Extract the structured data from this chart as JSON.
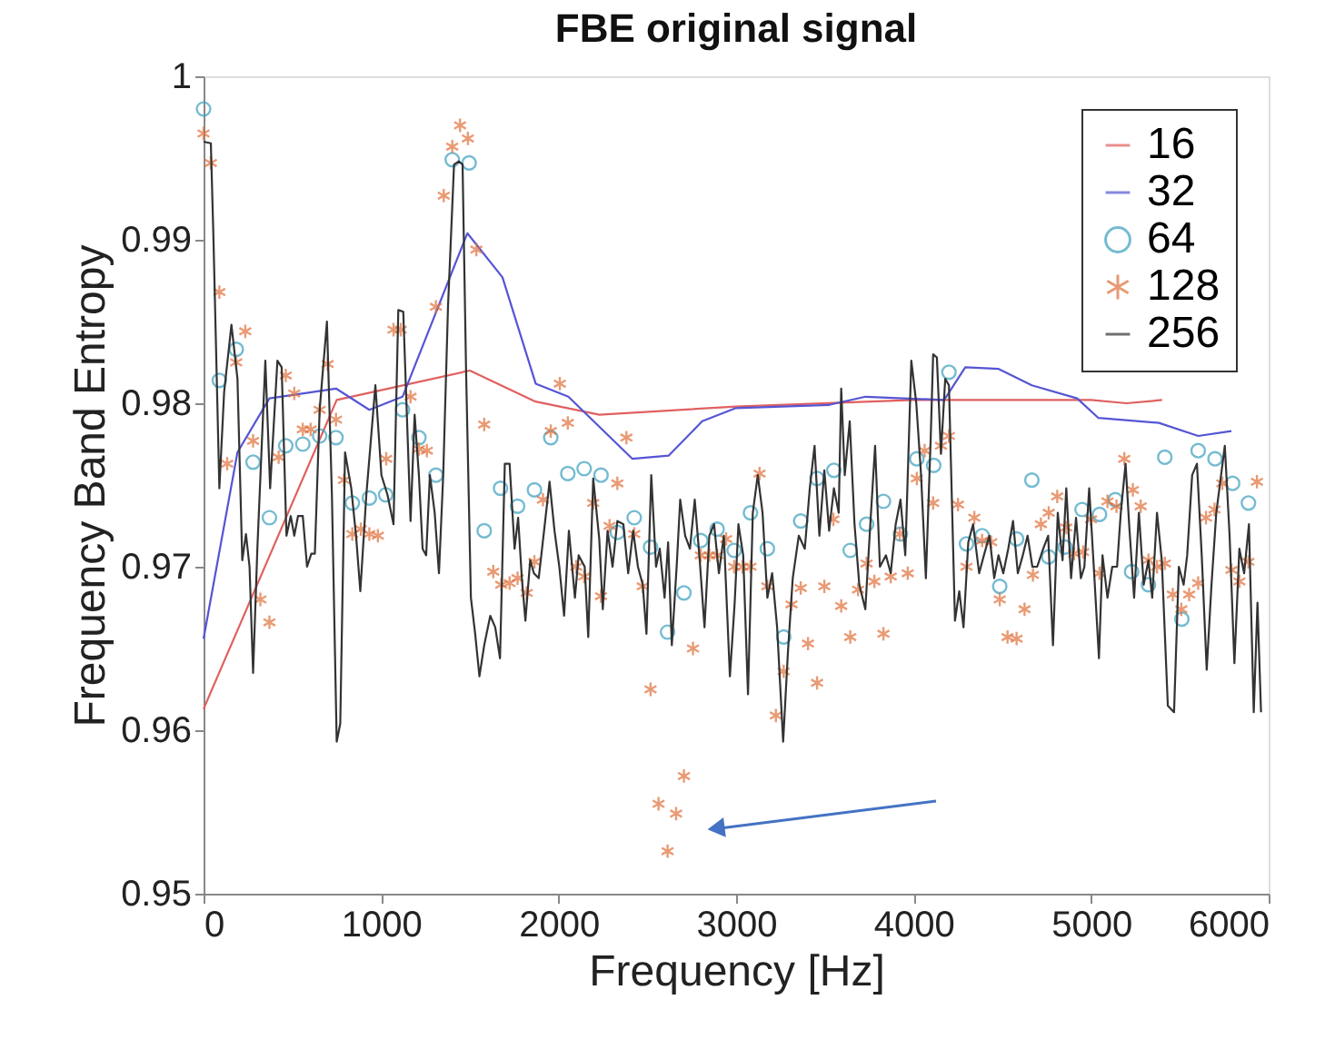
{
  "chart_data": {
    "type": "line",
    "title": "FBE original signal",
    "xlabel": "Frequency [Hz]",
    "ylabel": "Frequency Band Entropy",
    "xlim": [
      0,
      6000
    ],
    "xticks": [
      0,
      1000,
      2000,
      3000,
      4000,
      5000,
      6000
    ],
    "ylim": [
      0.95,
      1
    ],
    "yticks": [
      0.95,
      0.96,
      0.97,
      0.98,
      0.99,
      1
    ],
    "grid": false,
    "legend": "top right",
    "line_style": "solid",
    "series": [
      {
        "name": "16",
        "type": "line",
        "marker": "none",
        "color": "#e06060",
        "x": [
          0,
          750,
          1500,
          1870,
          2230,
          3000,
          4000,
          5000,
          5200,
          5400
        ],
        "values": [
          0.9613,
          0.9802,
          0.982,
          0.9801,
          0.9793,
          0.9798,
          0.9802,
          0.9802,
          0.98,
          0.9802
        ]
      },
      {
        "name": "32",
        "type": "line",
        "marker": "none",
        "color": "#5555d5",
        "x": [
          0,
          191,
          371,
          746,
          934,
          1121,
          1486,
          1684,
          1871,
          2055,
          2416,
          2621,
          2809,
          2996,
          3524,
          3729,
          4172,
          4291,
          4479,
          4666,
          4921,
          5041,
          5382,
          5603,
          5790
        ],
        "values": [
          0.9656,
          0.977,
          0.9803,
          0.9809,
          0.9796,
          0.9804,
          0.9904,
          0.9877,
          0.9812,
          0.9804,
          0.9766,
          0.9768,
          0.9789,
          0.9797,
          0.9799,
          0.9804,
          0.9802,
          0.9822,
          0.9821,
          0.9811,
          0.9803,
          0.9791,
          0.9788,
          0.978,
          0.9783
        ]
      },
      {
        "name": "64",
        "type": "scatter",
        "marker": "circle",
        "color": "#3a9fbf",
        "x": [
          0,
          89,
          184,
          279,
          371,
          463,
          559,
          654,
          746,
          838,
          934,
          1026,
          1121,
          1213,
          1309,
          1401,
          1496,
          1581,
          1673,
          1769,
          1864,
          1956,
          2052,
          2144,
          2239,
          2331,
          2426,
          2518,
          2614,
          2706,
          2801,
          2893,
          2989,
          3081,
          3176,
          3268,
          3364,
          3456,
          3551,
          3643,
          3735,
          3830,
          3926,
          4018,
          4113,
          4199,
          4298,
          4386,
          4485,
          4580,
          4666,
          4761,
          4853,
          4949,
          5047,
          5136,
          5228,
          5323,
          5415,
          5511,
          5603,
          5698,
          5797,
          5886
        ],
        "values": [
          0.998,
          0.9814,
          0.9833,
          0.9764,
          0.973,
          0.9774,
          0.9775,
          0.978,
          0.9779,
          0.9739,
          0.9742,
          0.9744,
          0.9796,
          0.9779,
          0.9756,
          0.9949,
          0.9947,
          0.9722,
          0.9748,
          0.9737,
          0.9747,
          0.9779,
          0.9757,
          0.976,
          0.9756,
          0.9721,
          0.973,
          0.9712,
          0.966,
          0.9684,
          0.9716,
          0.9723,
          0.971,
          0.9733,
          0.9711,
          0.9657,
          0.9728,
          0.9754,
          0.9759,
          0.971,
          0.9726,
          0.974,
          0.972,
          0.9766,
          0.9762,
          0.9819,
          0.9714,
          0.9719,
          0.9688,
          0.9717,
          0.9753,
          0.9706,
          0.9712,
          0.9735,
          0.9732,
          0.9741,
          0.9697,
          0.9689,
          0.9767,
          0.9668,
          0.9771,
          0.9766,
          0.9751,
          0.9739
        ]
      },
      {
        "name": "128",
        "type": "scatter",
        "marker": "cross",
        "color": "#e0703a",
        "x": [
          0,
          41,
          89,
          133,
          184,
          235,
          279,
          320,
          371,
          423,
          463,
          511,
          559,
          603,
          654,
          699,
          746,
          791,
          838,
          886,
          934,
          982,
          1029,
          1070,
          1111,
          1166,
          1213,
          1258,
          1309,
          1353,
          1401,
          1445,
          1489,
          1537,
          1581,
          1632,
          1677,
          1724,
          1769,
          1820,
          1864,
          1912,
          1956,
          2007,
          2052,
          2099,
          2144,
          2195,
          2239,
          2287,
          2331,
          2382,
          2426,
          2474,
          2518,
          2563,
          2614,
          2662,
          2706,
          2757,
          2801,
          2849,
          2893,
          2944,
          2989,
          3036,
          3081,
          3132,
          3176,
          3224,
          3268,
          3312,
          3364,
          3405,
          3456,
          3497,
          3548,
          3592,
          3643,
          3687,
          3735,
          3779,
          3830,
          3871,
          3922,
          3967,
          4018,
          4062,
          4110,
          4154,
          4199,
          4250,
          4298,
          4342,
          4386,
          4437,
          4485,
          4529,
          4580,
          4625,
          4672,
          4717,
          4761,
          4809,
          4860,
          4904,
          4955,
          4999,
          5047,
          5092,
          5143,
          5187,
          5235,
          5279,
          5323,
          5371,
          5415,
          5460,
          5508,
          5552,
          5603,
          5647,
          5695,
          5739,
          5790,
          5835,
          5886,
          5934
        ],
        "values": [
          0.9965,
          0.9947,
          0.9868,
          0.9763,
          0.9825,
          0.9844,
          0.9777,
          0.968,
          0.9666,
          0.9767,
          0.9817,
          0.9806,
          0.9784,
          0.9784,
          0.9796,
          0.9824,
          0.979,
          0.9753,
          0.972,
          0.9723,
          0.972,
          0.9719,
          0.9766,
          0.9845,
          0.9845,
          0.9804,
          0.9772,
          0.9771,
          0.9859,
          0.9927,
          0.9957,
          0.997,
          0.9962,
          0.9894,
          0.9787,
          0.9697,
          0.9689,
          0.969,
          0.9693,
          0.9684,
          0.9703,
          0.9741,
          0.9783,
          0.9812,
          0.9788,
          0.97,
          0.9694,
          0.9739,
          0.9682,
          0.9725,
          0.9751,
          0.9779,
          0.972,
          0.9688,
          0.9625,
          0.9555,
          0.9526,
          0.9549,
          0.9572,
          0.965,
          0.9707,
          0.9707,
          0.9707,
          0.9717,
          0.97,
          0.97,
          0.97,
          0.9757,
          0.9688,
          0.9609,
          0.9636,
          0.9677,
          0.9687,
          0.9653,
          0.9629,
          0.9688,
          0.9729,
          0.9676,
          0.9657,
          0.9686,
          0.9702,
          0.9691,
          0.9659,
          0.9694,
          0.972,
          0.9696,
          0.9754,
          0.9771,
          0.9739,
          0.9774,
          0.978,
          0.9738,
          0.97,
          0.973,
          0.9716,
          0.9715,
          0.968,
          0.9657,
          0.9656,
          0.9674,
          0.9695,
          0.9726,
          0.9733,
          0.9743,
          0.9724,
          0.9708,
          0.9709,
          0.9729,
          0.9696,
          0.974,
          0.9737,
          0.9766,
          0.9747,
          0.9737,
          0.9704,
          0.97,
          0.9702,
          0.9683,
          0.9674,
          0.9683,
          0.969,
          0.973,
          0.9735,
          0.9751,
          0.9698,
          0.9691,
          0.9703,
          0.9752
        ]
      },
      {
        "name": "256",
        "type": "line",
        "marker": "none",
        "color": "#333333",
        "x": [
          0,
          41,
          55,
          89,
          116,
          157,
          191,
          218,
          239,
          259,
          279,
          303,
          348,
          375,
          416,
          440,
          467,
          491,
          511,
          532,
          559,
          583,
          607,
          627,
          654,
          695,
          723,
          750,
          770,
          797,
          832,
          859,
          883,
          917,
          968,
          1002,
          1036,
          1070,
          1097,
          1125,
          1166,
          1189,
          1213,
          1234,
          1254,
          1275,
          1302,
          1326,
          1350,
          1377,
          1411,
          1438,
          1459,
          1479,
          1506,
          1530,
          1554,
          1581,
          1615,
          1643,
          1670,
          1697,
          1724,
          1752,
          1772,
          1793,
          1813,
          1840,
          1861,
          1888,
          1915,
          1949,
          1977,
          2004,
          2031,
          2058,
          2092,
          2113,
          2147,
          2167,
          2195,
          2229,
          2249,
          2276,
          2304,
          2331,
          2365,
          2392,
          2420,
          2447,
          2474,
          2495,
          2522,
          2549,
          2570,
          2597,
          2617,
          2638,
          2665,
          2685,
          2713,
          2740,
          2767,
          2795,
          2822,
          2849,
          2876,
          2903,
          2931,
          2965,
          2992,
          3013,
          3040,
          3067,
          3094,
          3122,
          3149,
          3176,
          3203,
          3231,
          3265,
          3292,
          3319,
          3353,
          3387,
          3415,
          3442,
          3469,
          3497,
          3524,
          3551,
          3578,
          3592,
          3612,
          3640,
          3667,
          3694,
          3728,
          3756,
          3783,
          3810,
          3844,
          3871,
          3899,
          3926,
          3953,
          3987,
          4015,
          4042,
          4069,
          4096,
          4110,
          4131,
          4154,
          4178,
          4199,
          4233,
          4257,
          4281,
          4308,
          4335,
          4369,
          4396,
          4427,
          4454,
          4478,
          4505,
          4533,
          4560,
          4587,
          4615,
          4642,
          4669,
          4696,
          4730,
          4758,
          4785,
          4812,
          4839,
          4860,
          4887,
          4915,
          4942,
          4962,
          4989,
          5017,
          5044,
          5064,
          5092,
          5119,
          5146,
          5167,
          5194,
          5214,
          5242,
          5269,
          5296,
          5323,
          5344,
          5371,
          5398,
          5432,
          5467,
          5494,
          5521,
          5541,
          5569,
          5596,
          5623,
          5651,
          5678,
          5705,
          5732,
          5753,
          5780,
          5807,
          5835,
          5862,
          5889,
          5916,
          5937,
          5957
        ],
        "values": [
          0.996,
          0.9959,
          0.9904,
          0.9748,
          0.9807,
          0.9848,
          0.9815,
          0.9704,
          0.972,
          0.97,
          0.9635,
          0.9711,
          0.9826,
          0.9748,
          0.9826,
          0.9822,
          0.9719,
          0.9731,
          0.9719,
          0.9731,
          0.9731,
          0.97,
          0.9708,
          0.9708,
          0.9796,
          0.985,
          0.9744,
          0.9593,
          0.9604,
          0.977,
          0.9748,
          0.9719,
          0.9685,
          0.9744,
          0.9811,
          0.9756,
          0.9744,
          0.9726,
          0.9857,
          0.9856,
          0.9728,
          0.9793,
          0.9756,
          0.9711,
          0.9707,
          0.9756,
          0.9733,
          0.9696,
          0.9756,
          0.9859,
          0.9946,
          0.9948,
          0.9946,
          0.9819,
          0.9681,
          0.9659,
          0.9633,
          0.9652,
          0.967,
          0.9663,
          0.9644,
          0.9763,
          0.9763,
          0.9711,
          0.973,
          0.9693,
          0.9667,
          0.9704,
          0.9696,
          0.9693,
          0.9719,
          0.9752,
          0.9722,
          0.97,
          0.967,
          0.9722,
          0.9681,
          0.9707,
          0.97,
          0.9657,
          0.9754,
          0.9717,
          0.9674,
          0.9722,
          0.97,
          0.9728,
          0.9726,
          0.9696,
          0.9722,
          0.97,
          0.9689,
          0.9659,
          0.9756,
          0.97,
          0.9711,
          0.9681,
          0.9715,
          0.9652,
          0.97,
          0.9741,
          0.9719,
          0.9711,
          0.9741,
          0.9704,
          0.9663,
          0.9719,
          0.9726,
          0.9696,
          0.9719,
          0.9633,
          0.9678,
          0.9726,
          0.9707,
          0.9622,
          0.9733,
          0.9756,
          0.9733,
          0.9681,
          0.9696,
          0.9663,
          0.9593,
          0.9648,
          0.9693,
          0.9719,
          0.9711,
          0.9748,
          0.9774,
          0.9719,
          0.9759,
          0.9722,
          0.9748,
          0.9733,
          0.9809,
          0.9756,
          0.9789,
          0.9726,
          0.9689,
          0.9674,
          0.9726,
          0.9774,
          0.97,
          0.9707,
          0.9696,
          0.9726,
          0.9741,
          0.9707,
          0.9826,
          0.98,
          0.9756,
          0.9693,
          0.9778,
          0.983,
          0.9828,
          0.9769,
          0.9815,
          0.9811,
          0.9667,
          0.9685,
          0.9663,
          0.9715,
          0.9726,
          0.9696,
          0.9707,
          0.9719,
          0.9693,
          0.9707,
          0.9696,
          0.9711,
          0.9728,
          0.9696,
          0.9707,
          0.9719,
          0.97,
          0.97,
          0.9711,
          0.9719,
          0.9652,
          0.9733,
          0.9704,
          0.9748,
          0.9693,
          0.973,
          0.9693,
          0.97,
          0.9748,
          0.9696,
          0.9644,
          0.9707,
          0.9681,
          0.97,
          0.97,
          0.9733,
          0.9763,
          0.9726,
          0.9681,
          0.9733,
          0.9689,
          0.9704,
          0.9681,
          0.9733,
          0.9704,
          0.9615,
          0.9611,
          0.97,
          0.9689,
          0.9707,
          0.9756,
          0.9763,
          0.9707,
          0.9637,
          0.9689,
          0.9733,
          0.9756,
          0.9774,
          0.9719,
          0.9641,
          0.9711,
          0.9696,
          0.9726,
          0.9611,
          0.9678,
          0.9611
        ]
      }
    ]
  }
}
